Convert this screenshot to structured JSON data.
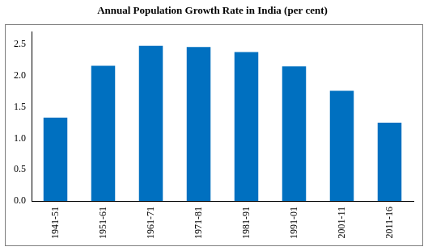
{
  "chart_data": {
    "type": "bar",
    "title": "Annual Population Growth Rate in India (per cent)",
    "categories": [
      "1941-51",
      "1951-61",
      "1961-71",
      "1971-81",
      "1981-91",
      "1991-01",
      "2001-11",
      "2011-16"
    ],
    "values": [
      1.33,
      2.16,
      2.48,
      2.46,
      2.38,
      2.15,
      1.76,
      1.25
    ],
    "color": "#0070c0",
    "ylim": [
      0,
      2.7
    ],
    "yticks": [
      {
        "value": 0,
        "label": "0.0"
      },
      0.5,
      {
        "value": 1,
        "label": "1.0"
      },
      1.5,
      {
        "value": 2,
        "label": "2.0"
      },
      2.5
    ],
    "grid": false
  }
}
